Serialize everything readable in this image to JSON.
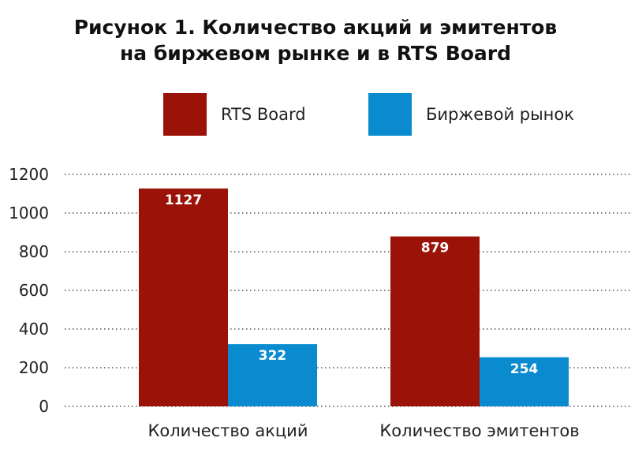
{
  "chart_data": {
    "type": "bar",
    "title_lines": [
      "Рисунок 1. Количество акций и эмитентов",
      "на биржевом рынке и в RTS Board"
    ],
    "categories": [
      "Количество акций",
      "Количество эмитентов"
    ],
    "series": [
      {
        "name": "RTS Board",
        "color": "#9b1308",
        "values": [
          1127,
          879
        ]
      },
      {
        "name": "Биржевой рынок",
        "color": "#0a8bd0",
        "values": [
          322,
          254
        ]
      }
    ],
    "ylim": [
      0,
      1200
    ],
    "yticks": [
      0,
      200,
      400,
      600,
      800,
      1000,
      1200
    ],
    "grid": true,
    "grid_style": "dotted",
    "legend_position": "top"
  }
}
